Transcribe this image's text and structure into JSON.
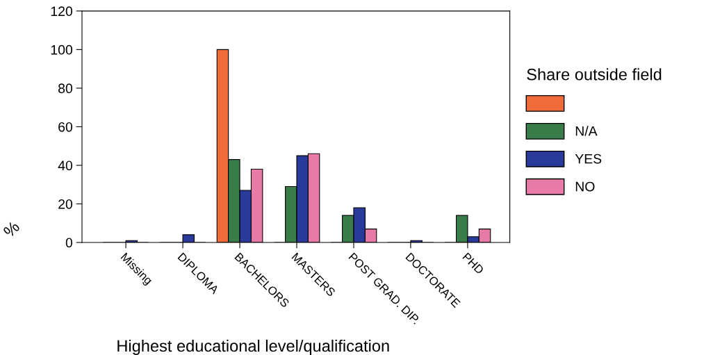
{
  "chart_data": {
    "type": "bar",
    "categories": [
      "Missing",
      "DIPLOMA",
      "BACHELORS",
      "MASTERS",
      "POST GRAD. DIP.",
      "DOCTORATE",
      "PHD"
    ],
    "series": [
      {
        "color": "#f06a3a",
        "values": [
          0,
          0,
          100,
          0,
          0,
          0,
          0
        ]
      },
      {
        "name": "N/A",
        "color": "#3a7d4a",
        "values": [
          0,
          0,
          43,
          29,
          14,
          0,
          14
        ]
      },
      {
        "name": "YES",
        "color": "#2a3a9a",
        "values": [
          1,
          4,
          27,
          45,
          18,
          1,
          3
        ]
      },
      {
        "name": "NO",
        "color": "#e87aa8",
        "values": [
          0,
          0,
          38,
          46,
          7,
          0,
          7
        ]
      }
    ],
    "xlabel": "Highest educational level/qualification",
    "ylabel": "%",
    "legend_title": "Share outside field",
    "legend": "right",
    "ylim": [
      0,
      120
    ],
    "yticks": [
      0,
      20,
      40,
      60,
      80,
      100,
      120
    ],
    "grid": false
  }
}
